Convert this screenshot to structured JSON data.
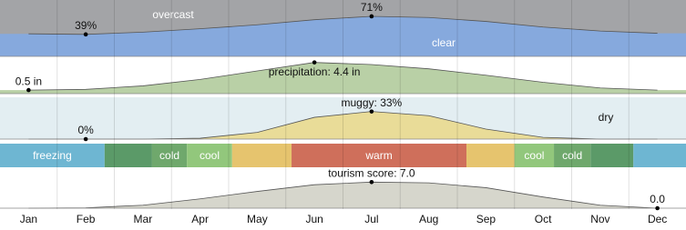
{
  "chart_data": {
    "type": "panels",
    "categories": [
      "Jan",
      "Feb",
      "Mar",
      "Apr",
      "May",
      "Jun",
      "Jul",
      "Aug",
      "Sep",
      "Oct",
      "Nov",
      "Dec"
    ],
    "panels": [
      {
        "type": "area",
        "background_label": "overcast",
        "background_color": "#a3a4a7",
        "ylim": [
          0,
          100
        ],
        "series": [
          {
            "name": "clear",
            "color": "#86a9dd",
            "values": [
              40,
              39,
              43,
              49,
              56,
              65,
              71,
              69,
              62,
              52,
              45,
              41
            ]
          }
        ],
        "value_labels": [
          null,
          "39%",
          null,
          null,
          null,
          null,
          "71%",
          null,
          null,
          null,
          null,
          null
        ]
      },
      {
        "type": "area",
        "ylim": [
          0,
          5
        ],
        "series": [
          {
            "color": "#b9d0a6",
            "values": [
              0.5,
              0.6,
              1.1,
              2.0,
              3.2,
              4.4,
              4.1,
              3.5,
              2.6,
              1.6,
              0.8,
              0.5
            ]
          }
        ],
        "value_labels": [
          "0.5 in",
          null,
          null,
          null,
          null,
          "precipitation: 4.4 in",
          null,
          null,
          null,
          null,
          null,
          null
        ]
      },
      {
        "type": "area",
        "background_label": "dry",
        "background_color": "#e3eef2",
        "ylim": [
          0,
          50
        ],
        "series": [
          {
            "color": "#e9dc98",
            "values": [
              0,
              0,
              0,
              1,
              8,
              26,
              33,
              28,
              12,
              2,
              0,
              0
            ]
          }
        ],
        "value_labels": [
          null,
          "0%",
          null,
          null,
          null,
          null,
          "muggy: 33%",
          null,
          null,
          null,
          null,
          null
        ]
      },
      {
        "type": "timeline",
        "segments": [
          {
            "label": "freezing",
            "start": 0,
            "end": 1.83,
            "color": "#6eb6d2"
          },
          {
            "label": null,
            "start": 1.83,
            "end": 2.66,
            "color": "#5b9a68"
          },
          {
            "label": "cold",
            "start": 2.66,
            "end": 3.27,
            "color": "#6fa86c"
          },
          {
            "label": "cool",
            "start": 3.27,
            "end": 4.06,
            "color": "#92c77c"
          },
          {
            "label": null,
            "start": 4.06,
            "end": 5.1,
            "color": "#e6c46e"
          },
          {
            "label": "warm",
            "start": 5.1,
            "end": 8.16,
            "color": "#cf6f5b"
          },
          {
            "label": null,
            "start": 8.16,
            "end": 9.0,
            "color": "#e6c46e"
          },
          {
            "label": "cool",
            "start": 9.0,
            "end": 9.69,
            "color": "#92c77c"
          },
          {
            "label": "cold",
            "start": 9.69,
            "end": 10.33,
            "color": "#6fa86c"
          },
          {
            "label": null,
            "start": 10.33,
            "end": 11.08,
            "color": "#5b9a68"
          },
          {
            "label": null,
            "start": 11.08,
            "end": 12,
            "color": "#6eb6d2"
          }
        ]
      },
      {
        "type": "area",
        "ylim": [
          0,
          10
        ],
        "series": [
          {
            "color": "#d6d6cc",
            "values": [
              0,
              0.1,
              0.8,
              2.5,
              4.5,
              6.3,
              7.0,
              6.8,
              5.5,
              3.0,
              0.8,
              0
            ]
          }
        ],
        "value_labels": [
          null,
          null,
          null,
          null,
          null,
          null,
          "tourism score: 7.0",
          null,
          null,
          null,
          null,
          "0.0"
        ]
      }
    ]
  }
}
